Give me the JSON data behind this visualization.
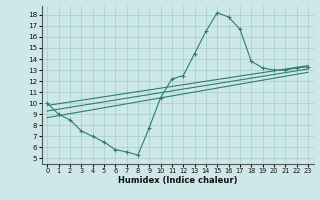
{
  "xlabel": "Humidex (Indice chaleur)",
  "bg_color": "#cce8e8",
  "grid_color": "#aacccc",
  "line_color": "#2e7d6e",
  "xlim": [
    -0.5,
    23.5
  ],
  "ylim": [
    4.5,
    18.8
  ],
  "xticks": [
    0,
    1,
    2,
    3,
    4,
    5,
    6,
    7,
    8,
    9,
    10,
    11,
    12,
    13,
    14,
    15,
    16,
    17,
    18,
    19,
    20,
    21,
    22,
    23
  ],
  "yticks": [
    5,
    6,
    7,
    8,
    9,
    10,
    11,
    12,
    13,
    14,
    15,
    16,
    17,
    18
  ],
  "curve_x": [
    0,
    1,
    2,
    3,
    4,
    5,
    6,
    7,
    8,
    9,
    10,
    11,
    12,
    13,
    14,
    15,
    16,
    17,
    18,
    19,
    20,
    21,
    22,
    23
  ],
  "curve_y": [
    10.0,
    9.0,
    8.5,
    7.5,
    7.0,
    6.5,
    5.8,
    5.6,
    5.3,
    7.8,
    10.5,
    12.2,
    12.5,
    14.5,
    16.5,
    18.2,
    17.8,
    16.7,
    13.8,
    13.2,
    13.0,
    13.0,
    13.2,
    13.3
  ],
  "line1_x": [
    0,
    23
  ],
  "line1_y": [
    9.8,
    13.4
  ],
  "line2_x": [
    0,
    23
  ],
  "line2_y": [
    9.3,
    13.1
  ],
  "line3_x": [
    0,
    23
  ],
  "line3_y": [
    8.7,
    12.8
  ]
}
